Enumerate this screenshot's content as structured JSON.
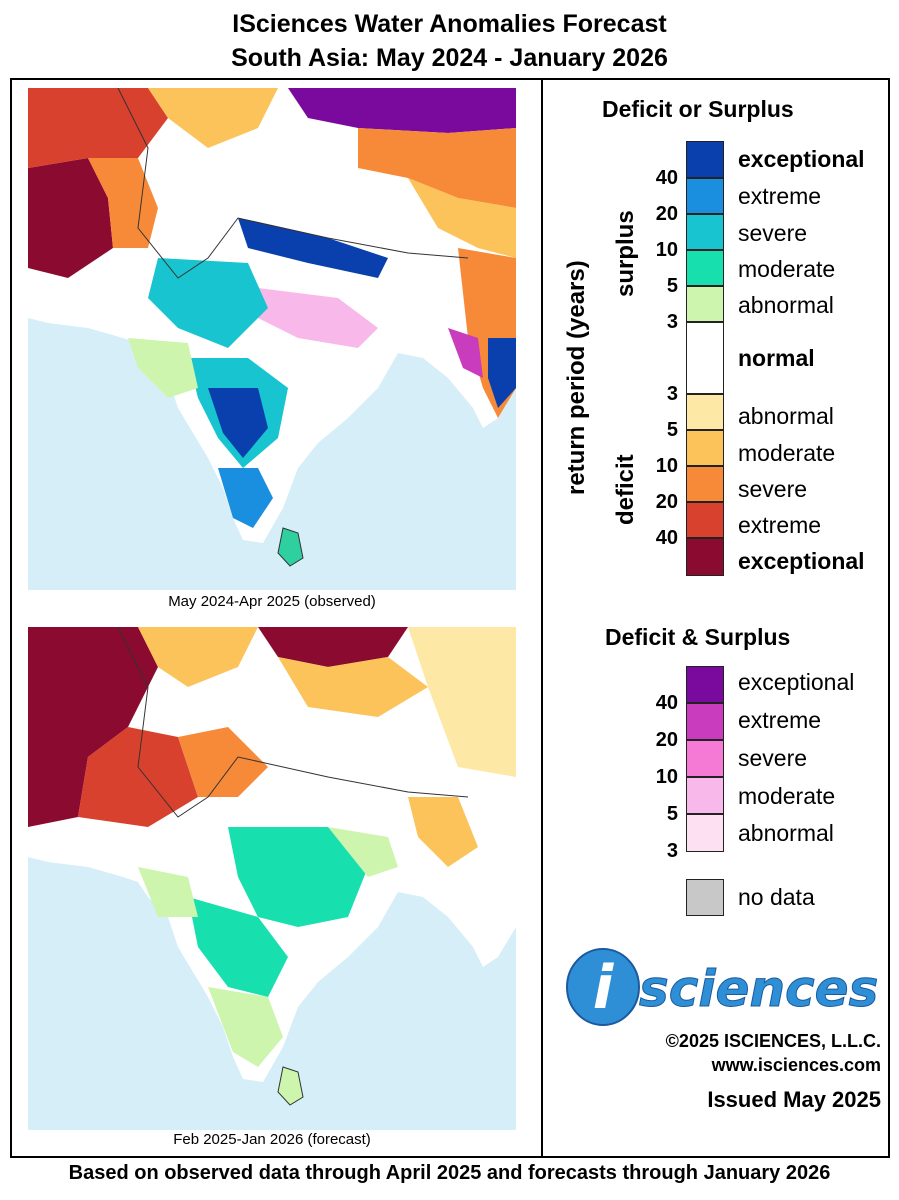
{
  "title_line1": "ISciences Water Anomalies Forecast",
  "title_line2": "South Asia: May 2024 - January 2026",
  "maps": [
    {
      "caption": "May 2024-Apr 2025 (observed)"
    },
    {
      "caption": "Feb 2025-Jan 2026 (forecast)"
    }
  ],
  "legend": {
    "title_main": "Deficit or Surplus",
    "axis_label": "return period (years)",
    "surplus_label": "surplus",
    "deficit_label": "deficit",
    "normal_label": "normal",
    "surplus_classes": [
      {
        "label": "exceptional",
        "color": "#0a3fae"
      },
      {
        "label": "extreme",
        "color": "#1a8fe0"
      },
      {
        "label": "severe",
        "color": "#17c4cf"
      },
      {
        "label": "moderate",
        "color": "#17e0ae"
      },
      {
        "label": "abnormal",
        "color": "#cdf5ad"
      }
    ],
    "surplus_ticks": [
      "40",
      "20",
      "10",
      "5",
      "3"
    ],
    "deficit_classes": [
      {
        "label": "abnormal",
        "color": "#fde8a6"
      },
      {
        "label": "moderate",
        "color": "#fbc35a"
      },
      {
        "label": "severe",
        "color": "#f78a38"
      },
      {
        "label": "extreme",
        "color": "#d8412e"
      },
      {
        "label": "exceptional",
        "color": "#8b0a2f"
      }
    ],
    "deficit_ticks": [
      "3",
      "5",
      "10",
      "20",
      "40"
    ],
    "both_title": "Deficit & Surplus",
    "both_classes": [
      {
        "label": "exceptional",
        "color": "#7a0a9e"
      },
      {
        "label": "extreme",
        "color": "#c93cbe"
      },
      {
        "label": "severe",
        "color": "#f57ad6"
      },
      {
        "label": "moderate",
        "color": "#f9b8ea"
      },
      {
        "label": "abnormal",
        "color": "#fde0f2"
      }
    ],
    "both_ticks": [
      "40",
      "20",
      "10",
      "5",
      "3"
    ],
    "nodata_label": "no data",
    "nodata_color": "#c8c8c8"
  },
  "brand": {
    "logo_letter": "i",
    "logo_text": "sciences",
    "copyright": "©2025 ISCIENCES, L.L.C.",
    "url": "www.isciences.com",
    "issued": "Issued May 2025"
  },
  "footer": "Based on observed data through April 2025 and forecasts through January 2026"
}
